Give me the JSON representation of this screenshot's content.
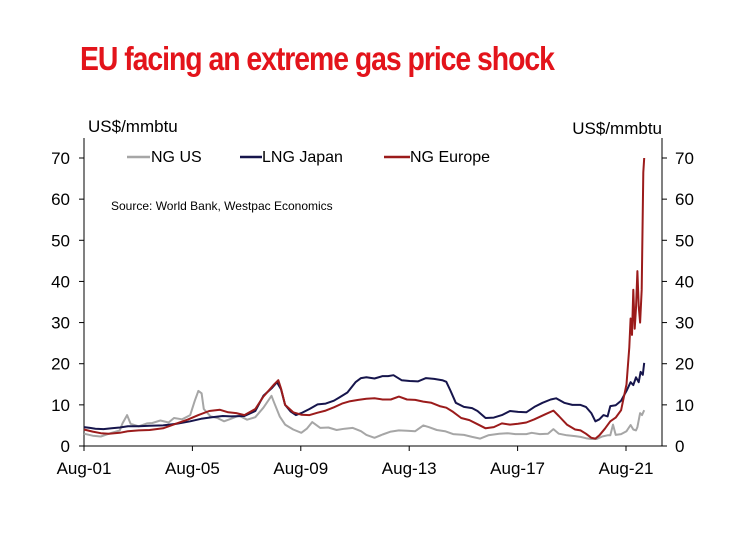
{
  "title": "EU facing an extreme gas price shock",
  "chart_data": {
    "type": "line",
    "left_axis_label": "US$/mmbtu",
    "right_axis_label": "US$/mmbtu",
    "source": "Source: World Bank, Westpac Economics",
    "ylim": [
      0,
      70
    ],
    "yticks": [
      0,
      10,
      20,
      30,
      40,
      50,
      60,
      70
    ],
    "xlim": [
      2001.58,
      2022.25
    ],
    "xticks": [
      {
        "label": "Aug-01",
        "x": 2001.58
      },
      {
        "label": "Aug-05",
        "x": 2005.58
      },
      {
        "label": "Aug-09",
        "x": 2009.58
      },
      {
        "label": "Aug-13",
        "x": 2013.58
      },
      {
        "label": "Aug-17",
        "x": 2017.58
      },
      {
        "label": "Aug-21",
        "x": 2021.58
      }
    ],
    "legend_position": "top",
    "grid": false,
    "series": [
      {
        "name": "NG US",
        "color": "#a6a6a6",
        "points": [
          [
            2001.58,
            3.0
          ],
          [
            2001.9,
            2.5
          ],
          [
            2002.2,
            2.3
          ],
          [
            2002.6,
            3.2
          ],
          [
            2002.9,
            3.8
          ],
          [
            2003.0,
            5.5
          ],
          [
            2003.17,
            7.5
          ],
          [
            2003.3,
            5.4
          ],
          [
            2003.6,
            4.8
          ],
          [
            2003.9,
            5.5
          ],
          [
            2004.1,
            5.6
          ],
          [
            2004.4,
            6.2
          ],
          [
            2004.7,
            5.7
          ],
          [
            2004.9,
            6.8
          ],
          [
            2005.2,
            6.5
          ],
          [
            2005.5,
            7.5
          ],
          [
            2005.67,
            11.0
          ],
          [
            2005.8,
            13.4
          ],
          [
            2005.92,
            12.8
          ],
          [
            2006.0,
            9.0
          ],
          [
            2006.25,
            7.2
          ],
          [
            2006.5,
            6.8
          ],
          [
            2006.75,
            6.0
          ],
          [
            2007.0,
            6.6
          ],
          [
            2007.3,
            7.4
          ],
          [
            2007.6,
            6.4
          ],
          [
            2007.9,
            7.0
          ],
          [
            2008.2,
            9.3
          ],
          [
            2008.5,
            12.2
          ],
          [
            2008.6,
            10.5
          ],
          [
            2008.8,
            7.2
          ],
          [
            2009.0,
            5.2
          ],
          [
            2009.3,
            4.0
          ],
          [
            2009.6,
            3.2
          ],
          [
            2009.8,
            4.2
          ],
          [
            2010.0,
            5.8
          ],
          [
            2010.3,
            4.4
          ],
          [
            2010.6,
            4.5
          ],
          [
            2010.9,
            3.9
          ],
          [
            2011.2,
            4.2
          ],
          [
            2011.5,
            4.4
          ],
          [
            2011.8,
            3.6
          ],
          [
            2012.0,
            2.7
          ],
          [
            2012.3,
            2.0
          ],
          [
            2012.6,
            2.8
          ],
          [
            2012.9,
            3.5
          ],
          [
            2013.2,
            3.8
          ],
          [
            2013.5,
            3.7
          ],
          [
            2013.8,
            3.6
          ],
          [
            2014.1,
            5.0
          ],
          [
            2014.3,
            4.6
          ],
          [
            2014.6,
            3.9
          ],
          [
            2014.9,
            3.6
          ],
          [
            2015.2,
            2.9
          ],
          [
            2015.6,
            2.7
          ],
          [
            2015.9,
            2.2
          ],
          [
            2016.2,
            1.8
          ],
          [
            2016.5,
            2.6
          ],
          [
            2016.9,
            3.0
          ],
          [
            2017.2,
            3.1
          ],
          [
            2017.5,
            2.9
          ],
          [
            2017.9,
            2.9
          ],
          [
            2018.1,
            3.2
          ],
          [
            2018.4,
            2.9
          ],
          [
            2018.7,
            3.0
          ],
          [
            2018.9,
            4.1
          ],
          [
            2019.1,
            3.0
          ],
          [
            2019.4,
            2.6
          ],
          [
            2019.7,
            2.4
          ],
          [
            2019.9,
            2.2
          ],
          [
            2020.1,
            1.9
          ],
          [
            2020.3,
            1.7
          ],
          [
            2020.5,
            1.7
          ],
          [
            2020.7,
            2.3
          ],
          [
            2020.9,
            2.6
          ],
          [
            2021.0,
            2.6
          ],
          [
            2021.1,
            5.2
          ],
          [
            2021.2,
            2.7
          ],
          [
            2021.4,
            2.9
          ],
          [
            2021.6,
            3.6
          ],
          [
            2021.75,
            5.1
          ],
          [
            2021.85,
            4.0
          ],
          [
            2021.95,
            3.8
          ],
          [
            2022.0,
            4.6
          ],
          [
            2022.1,
            8.0
          ],
          [
            2022.17,
            7.5
          ],
          [
            2022.25,
            8.7
          ]
        ]
      },
      {
        "name": "LNG Japan",
        "color": "#16154c",
        "points": [
          [
            2001.58,
            4.6
          ],
          [
            2001.8,
            4.4
          ],
          [
            2002.0,
            4.2
          ],
          [
            2002.3,
            4.1
          ],
          [
            2002.6,
            4.3
          ],
          [
            2002.9,
            4.5
          ],
          [
            2003.2,
            4.8
          ],
          [
            2003.6,
            4.8
          ],
          [
            2004.0,
            4.9
          ],
          [
            2004.5,
            5.0
          ],
          [
            2005.0,
            5.4
          ],
          [
            2005.5,
            6.0
          ],
          [
            2005.9,
            6.6
          ],
          [
            2006.3,
            7.0
          ],
          [
            2006.7,
            7.3
          ],
          [
            2007.0,
            7.2
          ],
          [
            2007.5,
            7.3
          ],
          [
            2007.9,
            8.5
          ],
          [
            2008.2,
            12.2
          ],
          [
            2008.5,
            14.0
          ],
          [
            2008.7,
            15.5
          ],
          [
            2008.85,
            13.8
          ],
          [
            2009.0,
            10.0
          ],
          [
            2009.2,
            8.4
          ],
          [
            2009.4,
            7.5
          ],
          [
            2009.6,
            8.0
          ],
          [
            2009.9,
            9.0
          ],
          [
            2010.2,
            10.1
          ],
          [
            2010.5,
            10.3
          ],
          [
            2010.8,
            11.0
          ],
          [
            2011.0,
            11.8
          ],
          [
            2011.3,
            13.0
          ],
          [
            2011.6,
            15.5
          ],
          [
            2011.8,
            16.5
          ],
          [
            2012.0,
            16.7
          ],
          [
            2012.3,
            16.4
          ],
          [
            2012.6,
            17.0
          ],
          [
            2012.8,
            17.0
          ],
          [
            2013.0,
            17.2
          ],
          [
            2013.3,
            16.0
          ],
          [
            2013.6,
            15.8
          ],
          [
            2013.9,
            15.7
          ],
          [
            2014.2,
            16.5
          ],
          [
            2014.5,
            16.3
          ],
          [
            2014.8,
            16.0
          ],
          [
            2014.95,
            15.6
          ],
          [
            2015.1,
            13.5
          ],
          [
            2015.3,
            10.5
          ],
          [
            2015.6,
            9.5
          ],
          [
            2015.9,
            9.2
          ],
          [
            2016.1,
            8.5
          ],
          [
            2016.4,
            6.8
          ],
          [
            2016.7,
            6.9
          ],
          [
            2017.0,
            7.5
          ],
          [
            2017.3,
            8.5
          ],
          [
            2017.6,
            8.3
          ],
          [
            2017.9,
            8.2
          ],
          [
            2018.2,
            9.5
          ],
          [
            2018.5,
            10.5
          ],
          [
            2018.8,
            11.3
          ],
          [
            2019.0,
            11.6
          ],
          [
            2019.3,
            10.5
          ],
          [
            2019.6,
            10.0
          ],
          [
            2019.9,
            10.0
          ],
          [
            2020.1,
            9.5
          ],
          [
            2020.3,
            8.0
          ],
          [
            2020.45,
            6.0
          ],
          [
            2020.6,
            6.5
          ],
          [
            2020.75,
            7.5
          ],
          [
            2020.9,
            7.2
          ],
          [
            2021.0,
            9.7
          ],
          [
            2021.2,
            9.9
          ],
          [
            2021.4,
            11.0
          ],
          [
            2021.6,
            13.4
          ],
          [
            2021.75,
            15.5
          ],
          [
            2021.85,
            14.8
          ],
          [
            2021.95,
            16.7
          ],
          [
            2022.05,
            15.5
          ],
          [
            2022.12,
            18.0
          ],
          [
            2022.2,
            17.3
          ],
          [
            2022.25,
            20.2
          ]
        ]
      },
      {
        "name": "NG Europe",
        "color": "#9b1b1b",
        "points": [
          [
            2001.58,
            4.0
          ],
          [
            2001.9,
            3.5
          ],
          [
            2002.2,
            3.1
          ],
          [
            2002.5,
            3.0
          ],
          [
            2002.9,
            3.2
          ],
          [
            2003.2,
            3.6
          ],
          [
            2003.6,
            3.8
          ],
          [
            2004.0,
            3.9
          ],
          [
            2004.5,
            4.3
          ],
          [
            2005.0,
            5.5
          ],
          [
            2005.4,
            6.4
          ],
          [
            2005.8,
            7.5
          ],
          [
            2006.2,
            8.5
          ],
          [
            2006.6,
            8.8
          ],
          [
            2006.9,
            8.2
          ],
          [
            2007.2,
            8.0
          ],
          [
            2007.5,
            7.5
          ],
          [
            2007.9,
            9.0
          ],
          [
            2008.2,
            12.0
          ],
          [
            2008.6,
            15.0
          ],
          [
            2008.75,
            16.0
          ],
          [
            2008.85,
            14.0
          ],
          [
            2009.0,
            10.0
          ],
          [
            2009.3,
            8.2
          ],
          [
            2009.6,
            7.6
          ],
          [
            2009.9,
            7.5
          ],
          [
            2010.2,
            8.1
          ],
          [
            2010.5,
            8.6
          ],
          [
            2010.8,
            9.4
          ],
          [
            2011.1,
            10.3
          ],
          [
            2011.4,
            10.9
          ],
          [
            2011.7,
            11.2
          ],
          [
            2012.0,
            11.5
          ],
          [
            2012.3,
            11.6
          ],
          [
            2012.6,
            11.3
          ],
          [
            2012.9,
            11.3
          ],
          [
            2013.2,
            12.0
          ],
          [
            2013.5,
            11.3
          ],
          [
            2013.8,
            11.2
          ],
          [
            2014.1,
            10.8
          ],
          [
            2014.4,
            10.5
          ],
          [
            2014.7,
            9.7
          ],
          [
            2014.95,
            9.3
          ],
          [
            2015.2,
            8.3
          ],
          [
            2015.5,
            6.8
          ],
          [
            2015.8,
            6.3
          ],
          [
            2016.1,
            5.3
          ],
          [
            2016.4,
            4.3
          ],
          [
            2016.7,
            4.6
          ],
          [
            2017.0,
            5.5
          ],
          [
            2017.3,
            5.2
          ],
          [
            2017.6,
            5.4
          ],
          [
            2017.9,
            5.7
          ],
          [
            2018.2,
            6.5
          ],
          [
            2018.6,
            7.7
          ],
          [
            2018.9,
            8.6
          ],
          [
            2019.1,
            7.3
          ],
          [
            2019.4,
            5.2
          ],
          [
            2019.7,
            4.0
          ],
          [
            2019.9,
            3.8
          ],
          [
            2020.1,
            3.0
          ],
          [
            2020.3,
            2.0
          ],
          [
            2020.45,
            1.8
          ],
          [
            2020.6,
            2.6
          ],
          [
            2020.8,
            4.2
          ],
          [
            2021.0,
            6.0
          ],
          [
            2021.2,
            6.9
          ],
          [
            2021.4,
            8.7
          ],
          [
            2021.6,
            15.0
          ],
          [
            2021.7,
            24.0
          ],
          [
            2021.75,
            31.0
          ],
          [
            2021.8,
            27.0
          ],
          [
            2021.85,
            38.0
          ],
          [
            2021.9,
            28.5
          ],
          [
            2021.95,
            33.5
          ],
          [
            2022.0,
            42.5
          ],
          [
            2022.05,
            34.0
          ],
          [
            2022.1,
            30.0
          ],
          [
            2022.16,
            38.0
          ],
          [
            2022.22,
            66.5
          ],
          [
            2022.25,
            70.0
          ]
        ]
      }
    ]
  }
}
